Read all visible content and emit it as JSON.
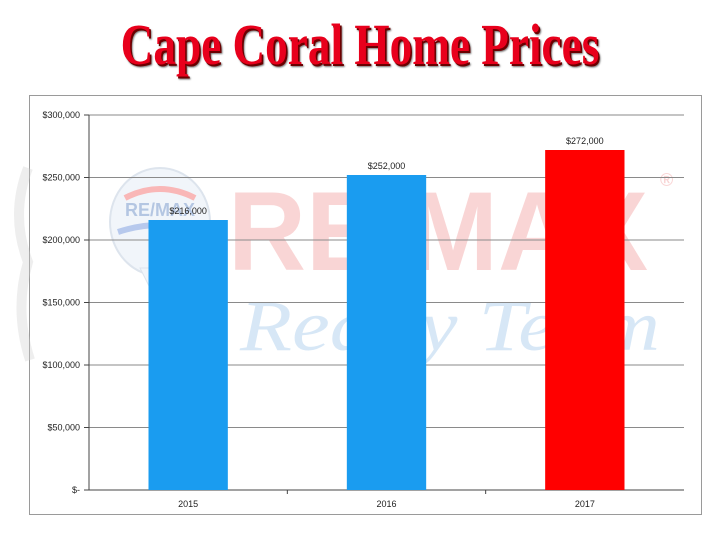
{
  "header": {
    "title": "Cape Coral Home Prices"
  },
  "watermark": {
    "brand": "RE/MAX",
    "team": "Realty Team",
    "registered": "®",
    "balloon_text": "RE/MAX"
  },
  "colors": {
    "bar_default": "#1a9cf0",
    "bar_highlight": "#ff0000",
    "title": "#e8001c"
  },
  "chart_data": {
    "type": "bar",
    "title": "",
    "xlabel": "",
    "ylabel": "",
    "categories": [
      "2015",
      "2016",
      "2017"
    ],
    "values": [
      216000,
      252000,
      272000
    ],
    "data_labels": [
      "$216,000",
      "$252,000",
      "$272,000"
    ],
    "bar_colors": [
      "#1a9cf0",
      "#1a9cf0",
      "#ff0000"
    ],
    "ylim": [
      0,
      300000
    ],
    "yticks": [
      0,
      50000,
      100000,
      150000,
      200000,
      250000,
      300000
    ],
    "ytick_labels": [
      "$-",
      "$50,000",
      "$100,000",
      "$150,000",
      "$200,000",
      "$250,000",
      "$300,000"
    ],
    "grid": true,
    "legend": "none"
  }
}
